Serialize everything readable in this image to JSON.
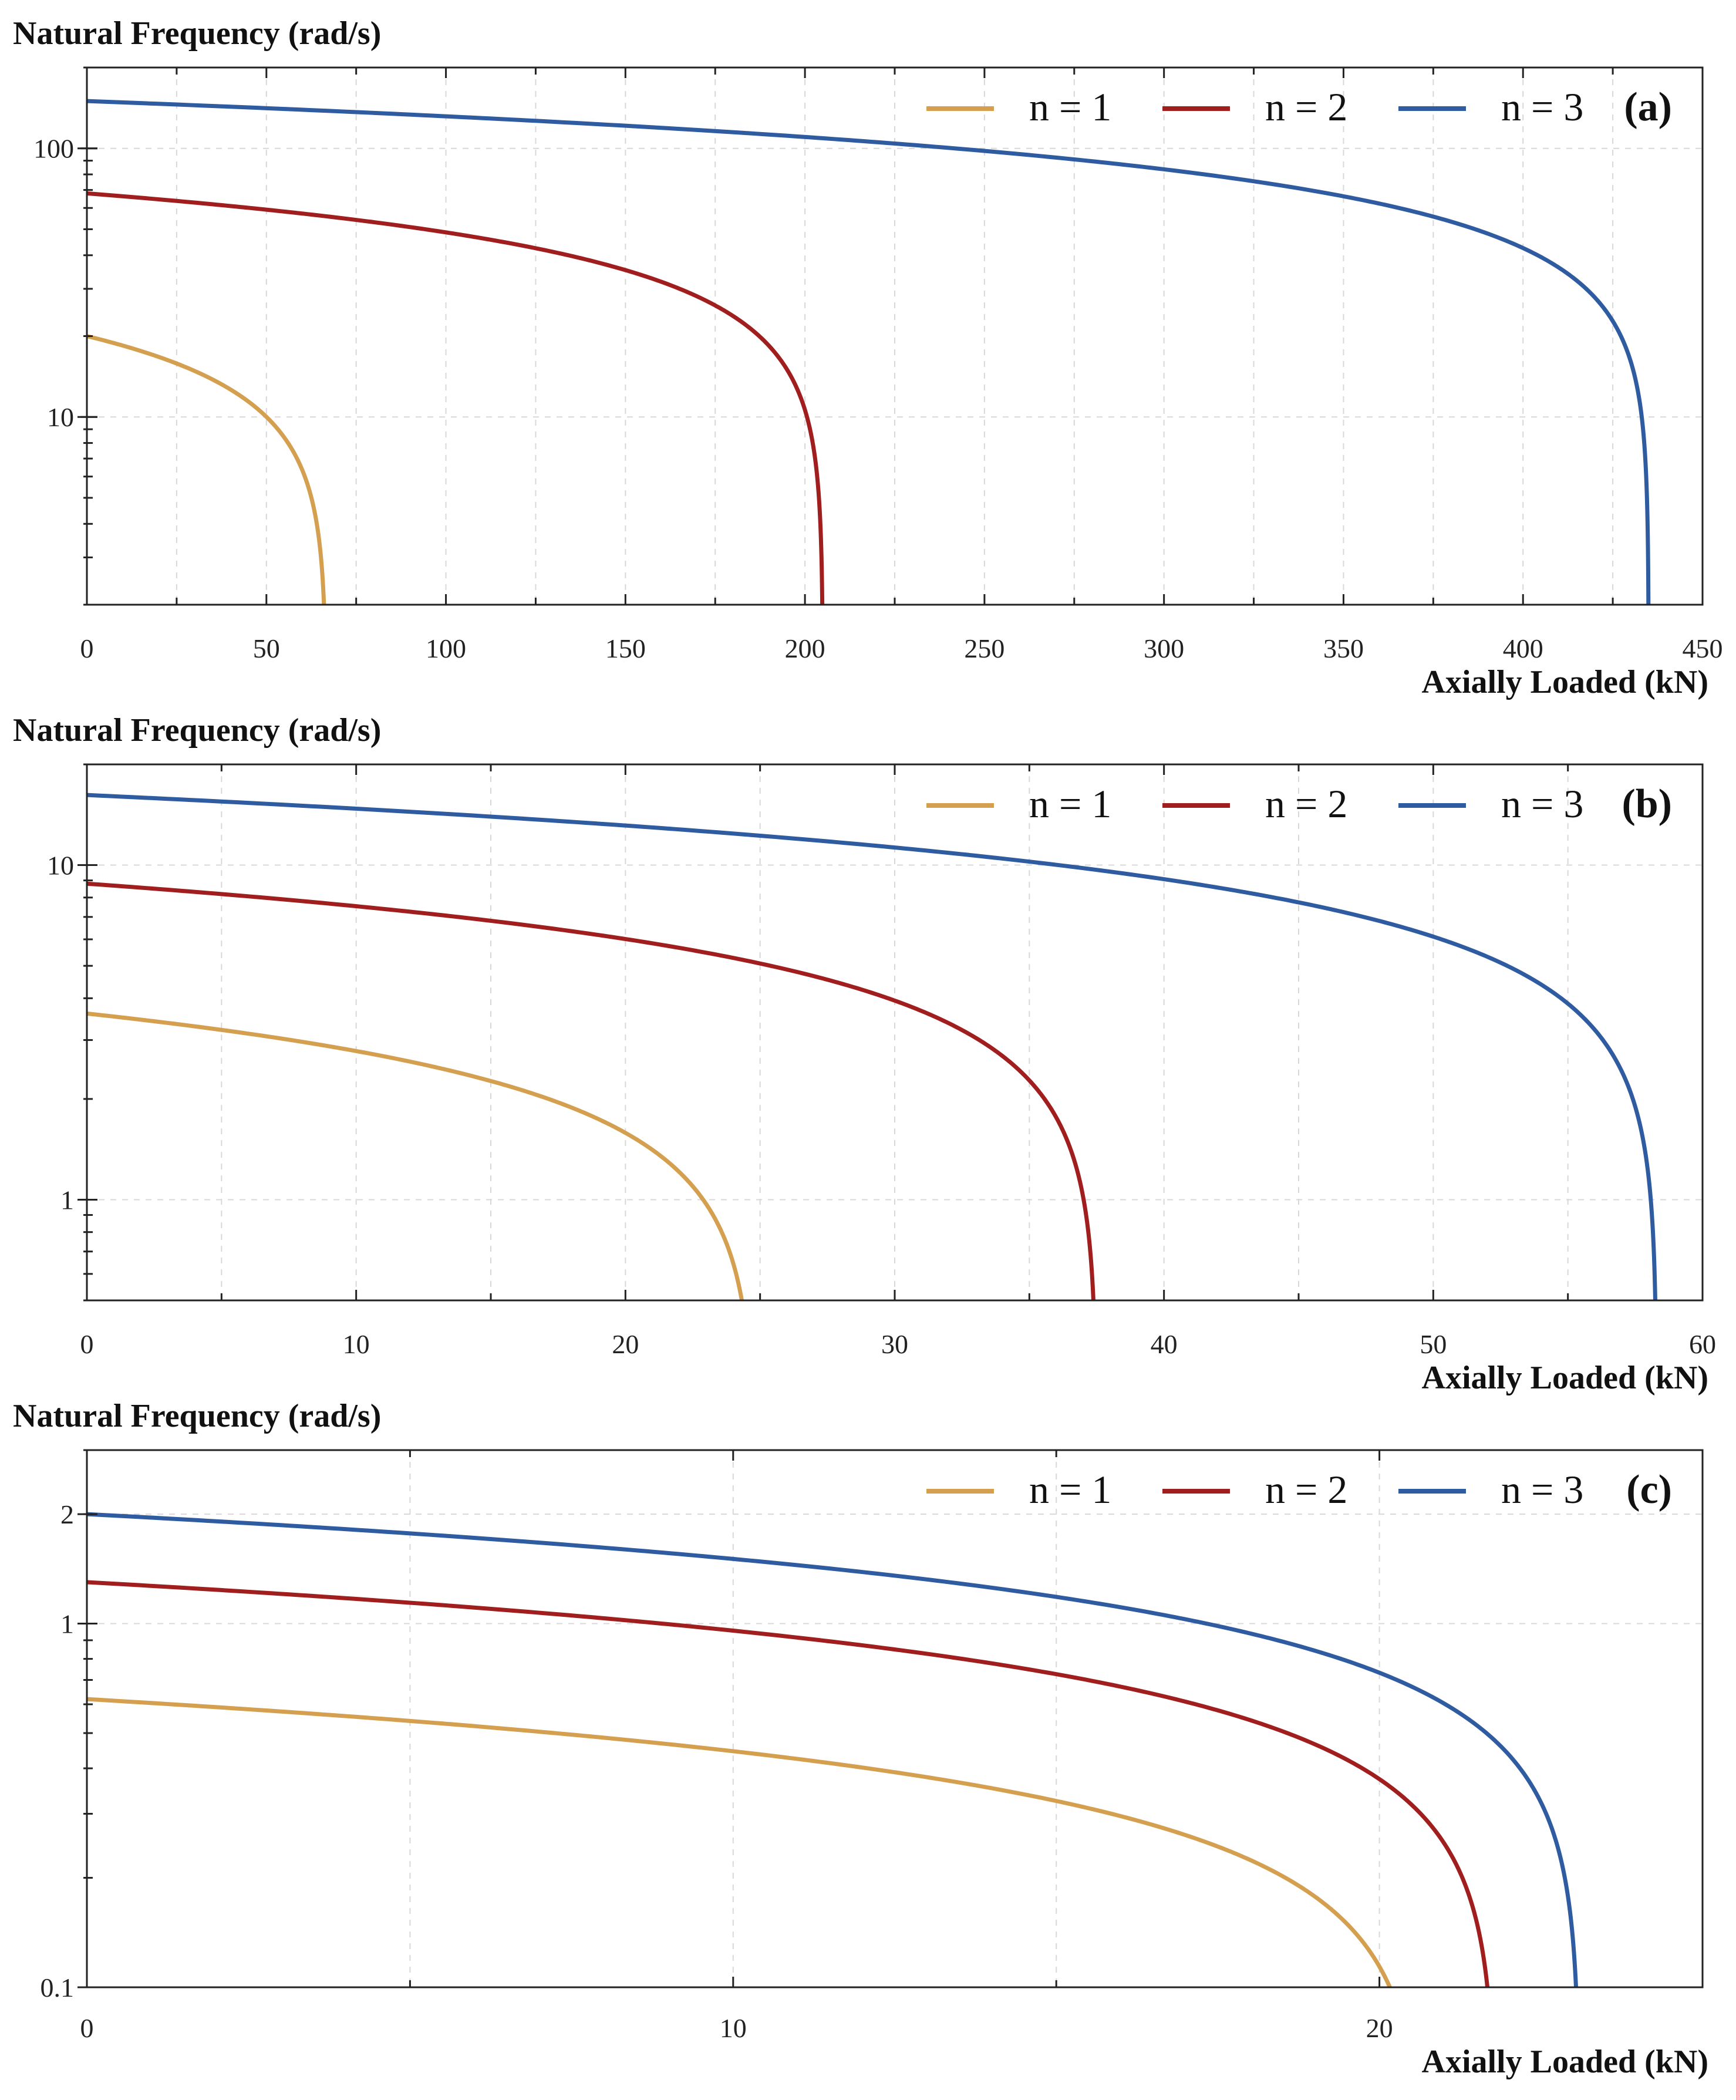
{
  "chart_data": [
    {
      "type": "line",
      "panel": "(a)",
      "ylabel": "Natural Frequency (rad/s)",
      "xlabel": "Axially Loaded (kN)",
      "yscale": "log",
      "xlim": [
        0,
        450
      ],
      "ylim": [
        2,
        200
      ],
      "xticks": [
        0,
        50,
        100,
        150,
        200,
        250,
        300,
        350,
        400,
        450
      ],
      "yticks": [
        10,
        100
      ],
      "legend_position": "top-right",
      "series": [
        {
          "name": "n = 1",
          "color": "#D4A050",
          "omega0": 20,
          "pcr": 66.7
        },
        {
          "name": "n = 2",
          "color": "#A01E1E",
          "omega0": 68,
          "pcr": 205
        },
        {
          "name": "n = 3",
          "color": "#2F5BA0",
          "omega0": 150,
          "pcr": 435
        }
      ]
    },
    {
      "type": "line",
      "panel": "(b)",
      "ylabel": "Natural Frequency (rad/s)",
      "xlabel": "Axially Loaded (kN)",
      "yscale": "log",
      "xlim": [
        0,
        60
      ],
      "ylim": [
        0.5,
        20
      ],
      "xticks": [
        0,
        10,
        20,
        30,
        40,
        50,
        60
      ],
      "yticks": [
        1,
        10
      ],
      "legend_position": "top-right",
      "series": [
        {
          "name": "n = 1",
          "color": "#D4A050",
          "omega0": 3.6,
          "pcr": 24.8
        },
        {
          "name": "n = 2",
          "color": "#A01E1E",
          "omega0": 8.8,
          "pcr": 37.5
        },
        {
          "name": "n = 3",
          "color": "#2F5BA0",
          "omega0": 16.2,
          "pcr": 58.3
        }
      ]
    },
    {
      "type": "line",
      "panel": "(c)",
      "ylabel": "Natural Frequency (rad/s)",
      "xlabel": "Axially Loaded (kN)",
      "yscale": "log",
      "xlim": [
        0,
        25
      ],
      "ylim": [
        0.1,
        3
      ],
      "xticks": [
        0,
        10,
        20
      ],
      "yticks": [
        0.1,
        1,
        2
      ],
      "legend_position": "top-right",
      "series": [
        {
          "name": "n = 1",
          "color": "#D4A050",
          "omega0": 0.62,
          "pcr": 20.7
        },
        {
          "name": "n = 2",
          "color": "#A01E1E",
          "omega0": 1.3,
          "pcr": 21.8
        },
        {
          "name": "n = 3",
          "color": "#2F5BA0",
          "omega0": 2.0,
          "pcr": 23.1
        }
      ]
    }
  ]
}
